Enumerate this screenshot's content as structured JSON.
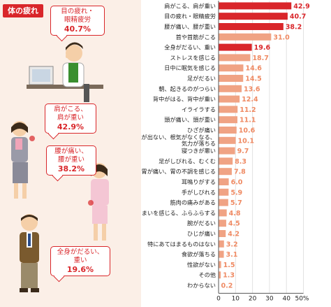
{
  "panel": {
    "title": "体の疲れ",
    "callouts": [
      {
        "label": "目の疲れ・\n眼精疲労",
        "value": "40.7%"
      },
      {
        "label": "肩がこる、\n肩が重い",
        "value": "42.9%"
      },
      {
        "label": "腰が痛い、\n腰が重い",
        "value": "38.2%"
      },
      {
        "label": "全身がだるい、\n重い",
        "value": "19.6%"
      }
    ],
    "illustrations": [
      "person-at-computer-rubbing-eyes-icon",
      "woman-holding-shoulder-icon",
      "woman-holding-back-icon",
      "tired-man-icon"
    ]
  },
  "chart_data": {
    "type": "bar",
    "orientation": "horizontal",
    "title": "",
    "xlabel": "",
    "ylabel": "",
    "xlim": [
      0,
      50
    ],
    "xticks": [
      "0",
      "10",
      "20",
      "30",
      "40",
      "50%"
    ],
    "grid": true,
    "highlight_color": "#d9262a",
    "bar_color": "#f0a384",
    "label_color": "#ef8a63",
    "categories": [
      "肩がこる、肩が重い",
      "目の疲れ・眼精疲労",
      "腰が痛い、腰が重い",
      "首や首筋がこる",
      "全身がだるい、重い",
      "ストレスを感じる",
      "日中に眠気を感じる",
      "足がだるい",
      "朝、起きるのがつらい",
      "背中がはる、背中が重い",
      "イライラする",
      "頭が痛い、頭が重い",
      "ひざが痛い",
      "やる気が出ない、根気がなくなる、気力が落ちる",
      "寝つきが悪い",
      "足がしびれる、むくむ",
      "胃が痛い、胃の不調を感じる",
      "耳鳴りがする",
      "手がしびれる",
      "筋肉の痛みがある",
      "めまいを感じる、ふらふらする",
      "腕がだるい",
      "ひじが痛い",
      "特にあてはまるものはない",
      "食欲が落ちる",
      "性欲がない",
      "その他",
      "わからない"
    ],
    "category_lines": [
      [
        "肩がこる、肩が重い"
      ],
      [
        "目の疲れ・眼精疲労"
      ],
      [
        "腰が痛い、腰が重い"
      ],
      [
        "首や首筋がこる"
      ],
      [
        "全身がだるい、重い"
      ],
      [
        "ストレスを感じる"
      ],
      [
        "日中に眠気を感じる"
      ],
      [
        "足がだるい"
      ],
      [
        "朝、起きるのがつらい"
      ],
      [
        "背中がはる、背中が重い"
      ],
      [
        "イライラする"
      ],
      [
        "頭が痛い、頭が重い"
      ],
      [
        "ひざが痛い"
      ],
      [
        "やる気が出ない、根気がなくなる、",
        "気力が落ちる"
      ],
      [
        "寝つきが悪い"
      ],
      [
        "足がしびれる、むくむ"
      ],
      [
        "胃が痛い、胃の不調を感じる"
      ],
      [
        "耳鳴りがする"
      ],
      [
        "手がしびれる"
      ],
      [
        "筋肉の痛みがある"
      ],
      [
        "めまいを感じる、ふらふらする"
      ],
      [
        "腕がだるい"
      ],
      [
        "ひじが痛い"
      ],
      [
        "特にあてはまるものはない"
      ],
      [
        "食欲が落ちる"
      ],
      [
        "性欲がない"
      ],
      [
        "その他"
      ],
      [
        "わからない"
      ]
    ],
    "values": [
      42.9,
      40.7,
      38.2,
      31.0,
      19.6,
      18.7,
      14.6,
      14.5,
      13.6,
      12.4,
      11.2,
      11.1,
      10.6,
      10.1,
      9.7,
      8.3,
      7.8,
      6.0,
      5.9,
      5.7,
      4.8,
      4.5,
      4.2,
      3.2,
      3.1,
      1.5,
      1.3,
      0.2
    ],
    "value_labels": [
      "42.9",
      "40.7",
      "38.2",
      "31.0",
      "19.6",
      "18.7",
      "14.6",
      "14.5",
      "13.6",
      "12.4",
      "11.2",
      "11.1",
      "10.6",
      "10.1",
      "9.7",
      "8.3",
      "7.8",
      "6.0",
      "5.9",
      "5.7",
      "4.8",
      "4.5",
      "4.2",
      "3.2",
      "3.1",
      "1.5",
      "1.3",
      "0.2"
    ],
    "highlighted": [
      true,
      true,
      true,
      false,
      true,
      false,
      false,
      false,
      false,
      false,
      false,
      false,
      false,
      false,
      false,
      false,
      false,
      false,
      false,
      false,
      false,
      false,
      false,
      false,
      false,
      false,
      false,
      false
    ]
  }
}
